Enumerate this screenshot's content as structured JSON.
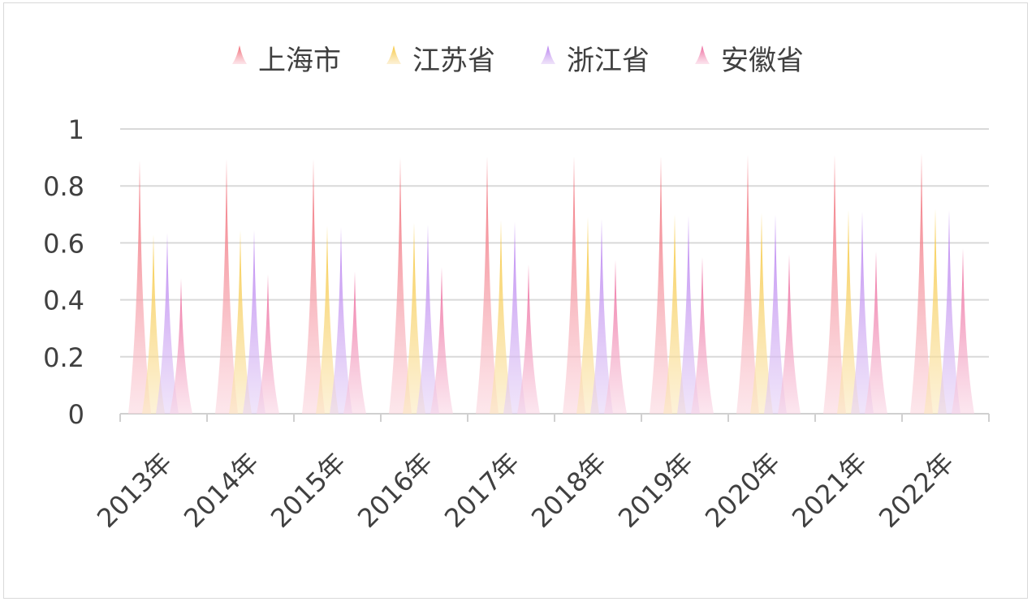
{
  "chart_data": {
    "type": "bar",
    "categories": [
      "2013年",
      "2014年",
      "2015年",
      "2016年",
      "2017年",
      "2018年",
      "2019年",
      "2020年",
      "2021年",
      "2022年"
    ],
    "series": [
      {
        "name": "上海市",
        "color": "#f0616b",
        "light": "#fbd3dc",
        "values": [
          0.89,
          0.895,
          0.895,
          0.9,
          0.905,
          0.905,
          0.905,
          0.91,
          0.91,
          0.915
        ]
      },
      {
        "name": "江苏省",
        "color": "#f6c534",
        "light": "#fbe7b9",
        "values": [
          0.63,
          0.645,
          0.66,
          0.67,
          0.68,
          0.69,
          0.7,
          0.705,
          0.715,
          0.72
        ]
      },
      {
        "name": "浙江省",
        "color": "#b57af0",
        "light": "#e4d0f6",
        "values": [
          0.635,
          0.645,
          0.655,
          0.665,
          0.675,
          0.685,
          0.695,
          0.7,
          0.71,
          0.715
        ]
      },
      {
        "name": "安徽省",
        "color": "#ec5f96",
        "light": "#f9d2e2",
        "values": [
          0.475,
          0.49,
          0.5,
          0.515,
          0.525,
          0.54,
          0.55,
          0.56,
          0.57,
          0.58
        ]
      }
    ],
    "yticks": [
      "0",
      "0.2",
      "0.4",
      "0.6",
      "0.8",
      "1"
    ],
    "ylim": [
      0,
      1
    ],
    "grid": true,
    "legend_position": "top"
  }
}
